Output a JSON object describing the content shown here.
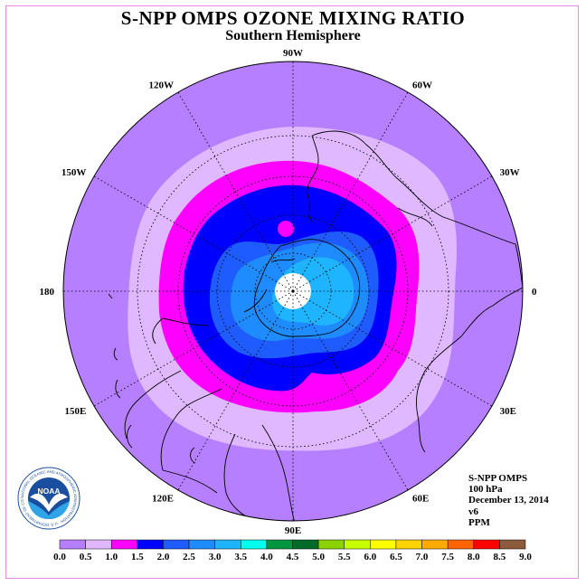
{
  "title": "S-NPP OMPS OZONE MIXING RATIO",
  "subtitle": "Southern Hemisphere",
  "meridian_labels": [
    "90W",
    "60W",
    "30W",
    "0",
    "30E",
    "60E",
    "90E",
    "120E",
    "150E",
    "180",
    "150W",
    "120W"
  ],
  "info": {
    "instrument": "S-NPP OMPS",
    "level": "100 hPa",
    "date": "December 13, 2014",
    "version": "v6",
    "units": "PPM"
  },
  "logo": {
    "text": "NOAA",
    "ring_text": "NATIONAL OCEANIC AND ATMOSPHERIC ADMINISTRATION · U.S. DEPARTMENT OF COMMERCE"
  },
  "colorbar": {
    "ticks": [
      "0.0",
      "0.5",
      "1.0",
      "1.5",
      "2.0",
      "2.5",
      "3.0",
      "3.5",
      "4.0",
      "4.5",
      "5.0",
      "5.5",
      "6.0",
      "6.5",
      "7.0",
      "7.5",
      "8.0",
      "8.5",
      "9.0"
    ],
    "colors": [
      "#b57fff",
      "#dfb8ff",
      "#ff00ff",
      "#0000ff",
      "#1e5cff",
      "#1e8cff",
      "#1eb4ff",
      "#00ffee",
      "#009640",
      "#006a2a",
      "#8cd200",
      "#c8ff00",
      "#ffff00",
      "#ffd200",
      "#ffaa00",
      "#ff6400",
      "#ff0000",
      "#8c5a3c"
    ]
  },
  "map_colors": {
    "band_0_to_0_5": "#b57fff",
    "band_0_5_to_1_0": "#dfb8ff",
    "band_1_0_to_1_5": "#ff00ff",
    "band_1_5_to_2_0": "#0000ff",
    "band_2_0_to_2_5": "#1e5cff",
    "band_2_5_to_3_0": "#1e8cff",
    "band_3_0_to_3_5": "#1eb4ff",
    "pole_no_data": "#ffffff"
  }
}
